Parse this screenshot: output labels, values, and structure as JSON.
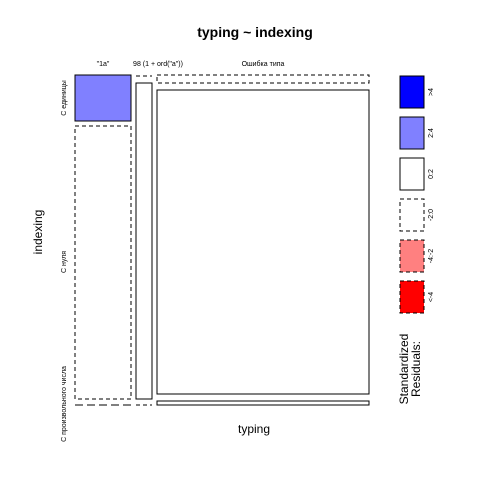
{
  "chart_data": {
    "type": "mosaic",
    "title": "typing ~ indexing",
    "xlabel": "typing",
    "ylabel": "indexing",
    "columns": [
      "\"1a\"",
      "98 (1 + ord(\"a\"))",
      "Ошибка типа"
    ],
    "rows": [
      "С единицы",
      "С нуля",
      "С произвольного числа"
    ],
    "column_proportions": [
      0.27,
      0.08,
      0.65
    ],
    "cells": [
      [
        {
          "share": 0.16,
          "residual_class": "2:4"
        },
        {
          "share": 0.0,
          "residual_class": "-2:0"
        },
        {
          "share": 0.0,
          "residual_class": "-2:0"
        }
      ],
      [
        {
          "share": 0.84,
          "residual_class": "-2:0"
        },
        {
          "share": 1.0,
          "residual_class": "0:2"
        },
        {
          "share": 1.0,
          "residual_class": "0:2"
        }
      ],
      [
        {
          "share": 0.0,
          "residual_class": "-2:0"
        },
        {
          "share": 0.0,
          "residual_class": "-2:0"
        },
        {
          "share": 0.0,
          "residual_class": "0:2"
        }
      ]
    ],
    "legend": {
      "title_lines": [
        "Standardized",
        "Residuals:"
      ],
      "items": [
        {
          "label": ">4",
          "fill": "#0000ff",
          "dashed": false
        },
        {
          "label": "2:4",
          "fill": "#8080ff",
          "dashed": false
        },
        {
          "label": "0:2",
          "fill": "#ffffff",
          "dashed": false
        },
        {
          "label": "-2:0",
          "fill": "#ffffff",
          "dashed": true
        },
        {
          "label": "-4:-2",
          "fill": "#ff8080",
          "dashed": true
        },
        {
          "label": "<-4",
          "fill": "#ff0000",
          "dashed": true
        }
      ]
    }
  }
}
